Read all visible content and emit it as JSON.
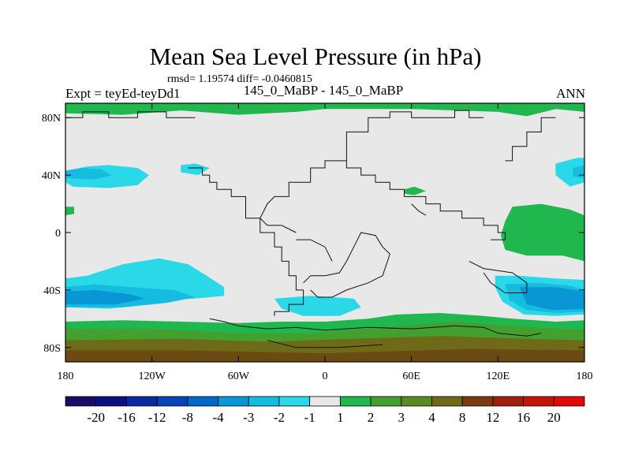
{
  "title": "Mean Sea Level Pressure (in hPa)",
  "stats": "rmsd= 1.19574 diff= -0.0460815",
  "left_label": "Expt = teyEd-teyDd1",
  "center_label": "145_0_MaBP - 145_0_MaBP",
  "right_label": "ANN",
  "lat_ticks": [
    {
      "label": "80N",
      "lat": 80
    },
    {
      "label": "40N",
      "lat": 40
    },
    {
      "label": "0",
      "lat": 0
    },
    {
      "label": "40S",
      "lat": -40
    },
    {
      "label": "80S",
      "lat": -80
    }
  ],
  "lon_ticks": [
    {
      "label": "180",
      "lon": -180
    },
    {
      "label": "120W",
      "lon": -120
    },
    {
      "label": "60W",
      "lon": -60
    },
    {
      "label": "0",
      "lon": 0
    },
    {
      "label": "60E",
      "lon": 60
    },
    {
      "label": "120E",
      "lon": 120
    },
    {
      "label": "180",
      "lon": 180
    }
  ],
  "colorbar": {
    "labels": [
      "-20",
      "-16",
      "-12",
      "-8",
      "-4",
      "-3",
      "-2",
      "-1",
      "1",
      "2",
      "3",
      "4",
      "8",
      "12",
      "16",
      "20"
    ],
    "colors": [
      "#1a0a66",
      "#0a107f",
      "#0a2aa3",
      "#0644b8",
      "#0468c8",
      "#0896d4",
      "#16bce0",
      "#2ad8e8",
      "#e8e8e8",
      "#20b84e",
      "#43a02e",
      "#5c8a22",
      "#6e6a18",
      "#7a3a12",
      "#a0200e",
      "#c4140a",
      "#e00a08"
    ]
  },
  "regions": [
    {
      "name": "arctic-positive-band",
      "color": "#20b84e",
      "rings": [
        [
          [
            -180,
            83
          ],
          [
            -140,
            82
          ],
          [
            -100,
            85
          ],
          [
            -60,
            82
          ],
          [
            -20,
            84
          ],
          [
            0,
            86
          ],
          [
            60,
            86
          ],
          [
            120,
            84
          ],
          [
            140,
            81
          ],
          [
            160,
            86
          ],
          [
            180,
            84
          ],
          [
            180,
            90
          ],
          [
            -180,
            90
          ]
        ]
      ]
    },
    {
      "name": "north-pacific-low-outer",
      "color": "#2ad8e8",
      "rings": [
        [
          [
            -180,
            43
          ],
          [
            -165,
            46
          ],
          [
            -150,
            47
          ],
          [
            -130,
            45
          ],
          [
            -122,
            40
          ],
          [
            -130,
            33
          ],
          [
            -150,
            31
          ],
          [
            -175,
            32
          ],
          [
            -180,
            35
          ]
        ]
      ]
    },
    {
      "name": "north-pacific-low-inner",
      "color": "#16bce0",
      "rings": [
        [
          [
            -180,
            43
          ],
          [
            -168,
            45
          ],
          [
            -155,
            44
          ],
          [
            -148,
            40
          ],
          [
            -160,
            37
          ],
          [
            -180,
            38
          ]
        ]
      ]
    },
    {
      "name": "north-atlantic-low",
      "color": "#2ad8e8",
      "rings": [
        [
          [
            -100,
            47
          ],
          [
            -90,
            48
          ],
          [
            -80,
            45
          ],
          [
            -88,
            40
          ],
          [
            -100,
            42
          ]
        ]
      ]
    },
    {
      "name": "east-north-low-outer",
      "color": "#2ad8e8",
      "rings": [
        [
          [
            160,
            48
          ],
          [
            175,
            52
          ],
          [
            180,
            52
          ],
          [
            180,
            35
          ],
          [
            170,
            32
          ],
          [
            160,
            40
          ]
        ]
      ]
    },
    {
      "name": "east-north-low-inner",
      "color": "#16bce0",
      "rings": [
        [
          [
            172,
            45
          ],
          [
            180,
            47
          ],
          [
            180,
            38
          ],
          [
            172,
            39
          ]
        ]
      ]
    },
    {
      "name": "east-pacific-high",
      "color": "#20b84e",
      "rings": [
        [
          [
            130,
            18
          ],
          [
            150,
            20
          ],
          [
            170,
            16
          ],
          [
            180,
            12
          ],
          [
            180,
            -20
          ],
          [
            165,
            -16
          ],
          [
            140,
            -16
          ],
          [
            125,
            -12
          ],
          [
            122,
            -2
          ],
          [
            125,
            8
          ]
        ]
      ]
    },
    {
      "name": "west-pacific-high-edge",
      "color": "#20b84e",
      "rings": [
        [
          [
            -180,
            18
          ],
          [
            -174,
            18
          ],
          [
            -174,
            13
          ],
          [
            -180,
            12
          ]
        ]
      ]
    },
    {
      "name": "tethys-high",
      "color": "#20b84e",
      "rings": [
        [
          [
            55,
            30
          ],
          [
            62,
            32
          ],
          [
            70,
            29
          ],
          [
            62,
            26
          ],
          [
            55,
            27
          ]
        ]
      ]
    },
    {
      "name": "southern-low-outer",
      "color": "#2ad8e8",
      "rings": [
        [
          [
            -180,
            -32
          ],
          [
            -165,
            -30
          ],
          [
            -140,
            -22
          ],
          [
            -115,
            -18
          ],
          [
            -95,
            -22
          ],
          [
            -82,
            -30
          ],
          [
            -70,
            -38
          ],
          [
            -70,
            -44
          ],
          [
            -90,
            -46
          ],
          [
            -110,
            -47
          ],
          [
            -130,
            -51
          ],
          [
            -150,
            -53
          ],
          [
            -180,
            -52
          ]
        ]
      ]
    },
    {
      "name": "southern-low-mid",
      "color": "#16bce0",
      "rings": [
        [
          [
            -180,
            -38
          ],
          [
            -160,
            -36
          ],
          [
            -135,
            -38
          ],
          [
            -105,
            -40
          ],
          [
            -90,
            -45
          ],
          [
            -110,
            -49
          ],
          [
            -140,
            -52
          ],
          [
            -180,
            -52
          ]
        ]
      ]
    },
    {
      "name": "southern-low-core",
      "color": "#0896d4",
      "rings": [
        [
          [
            -180,
            -41
          ],
          [
            -160,
            -40
          ],
          [
            -135,
            -43
          ],
          [
            -125,
            -46
          ],
          [
            -145,
            -50
          ],
          [
            -180,
            -50
          ]
        ]
      ]
    },
    {
      "name": "south-atlantic-low",
      "color": "#2ad8e8",
      "rings": [
        [
          [
            -35,
            -46
          ],
          [
            -10,
            -44
          ],
          [
            20,
            -46
          ],
          [
            25,
            -52
          ],
          [
            10,
            -58
          ],
          [
            -15,
            -58
          ],
          [
            -30,
            -53
          ]
        ]
      ]
    },
    {
      "name": "south-indian-low-outer",
      "color": "#2ad8e8",
      "rings": [
        [
          [
            118,
            -30
          ],
          [
            135,
            -30
          ],
          [
            160,
            -32
          ],
          [
            180,
            -33
          ],
          [
            180,
            -57
          ],
          [
            160,
            -58
          ],
          [
            138,
            -57
          ],
          [
            123,
            -48
          ],
          [
            118,
            -38
          ]
        ]
      ]
    },
    {
      "name": "south-indian-low-mid",
      "color": "#16bce0",
      "rings": [
        [
          [
            125,
            -36
          ],
          [
            145,
            -35
          ],
          [
            170,
            -37
          ],
          [
            180,
            -40
          ],
          [
            180,
            -55
          ],
          [
            160,
            -56
          ],
          [
            140,
            -54
          ],
          [
            128,
            -47
          ]
        ]
      ]
    },
    {
      "name": "south-indian-low-core",
      "color": "#0896d4",
      "rings": [
        [
          [
            135,
            -38
          ],
          [
            160,
            -38
          ],
          [
            180,
            -41
          ],
          [
            180,
            -53
          ],
          [
            158,
            -54
          ],
          [
            140,
            -50
          ]
        ]
      ]
    },
    {
      "name": "south-positive-green",
      "color": "#20b84e",
      "rings": [
        [
          [
            -180,
            -62
          ],
          [
            -140,
            -61
          ],
          [
            -100,
            -62
          ],
          [
            -60,
            -63
          ],
          [
            -30,
            -62
          ],
          [
            0,
            -62
          ],
          [
            30,
            -60
          ],
          [
            50,
            -57
          ],
          [
            80,
            -56
          ],
          [
            110,
            -58
          ],
          [
            130,
            -60
          ],
          [
            160,
            -62
          ],
          [
            180,
            -61
          ],
          [
            180,
            -90
          ],
          [
            -180,
            -90
          ]
        ]
      ]
    },
    {
      "name": "south-positive-olive",
      "color": "#43a02e",
      "rings": [
        [
          [
            -180,
            -67
          ],
          [
            -120,
            -67
          ],
          [
            -60,
            -70
          ],
          [
            -10,
            -70
          ],
          [
            40,
            -66
          ],
          [
            90,
            -62
          ],
          [
            130,
            -65
          ],
          [
            180,
            -68
          ],
          [
            180,
            -90
          ],
          [
            -180,
            -90
          ]
        ]
      ]
    },
    {
      "name": "south-positive-brown",
      "color": "#6e6a18",
      "rings": [
        [
          [
            -180,
            -75
          ],
          [
            -100,
            -74
          ],
          [
            -40,
            -76
          ],
          [
            20,
            -74
          ],
          [
            80,
            -72
          ],
          [
            140,
            -74
          ],
          [
            180,
            -75
          ],
          [
            180,
            -90
          ],
          [
            -180,
            -90
          ]
        ]
      ]
    },
    {
      "name": "south-positive-dark",
      "color": "#6b4a14",
      "rings": [
        [
          [
            -180,
            -82
          ],
          [
            -100,
            -82
          ],
          [
            0,
            -84
          ],
          [
            100,
            -81
          ],
          [
            180,
            -82
          ],
          [
            180,
            -90
          ],
          [
            -180,
            -90
          ]
        ]
      ]
    }
  ],
  "coastlines": [
    [
      [
        -180,
        80
      ],
      [
        -168,
        80
      ],
      [
        -168,
        84
      ],
      [
        -150,
        84
      ],
      [
        -150,
        80
      ],
      [
        -130,
        80
      ],
      [
        -130,
        84
      ],
      [
        -110,
        84
      ],
      [
        -110,
        80
      ],
      [
        -90,
        80
      ]
    ],
    [
      [
        -95,
        45
      ],
      [
        -85,
        45
      ],
      [
        -85,
        40
      ],
      [
        -80,
        40
      ],
      [
        -80,
        35
      ],
      [
        -75,
        35
      ],
      [
        -75,
        30
      ],
      [
        -65,
        30
      ],
      [
        -65,
        25
      ],
      [
        -55,
        25
      ],
      [
        -55,
        10
      ],
      [
        -45,
        10
      ],
      [
        -45,
        0
      ],
      [
        -35,
        0
      ],
      [
        -35,
        -10
      ],
      [
        -30,
        -10
      ],
      [
        -30,
        -20
      ],
      [
        -25,
        -20
      ],
      [
        -25,
        -30
      ],
      [
        -20,
        -30
      ],
      [
        -20,
        -40
      ],
      [
        -15,
        -40
      ],
      [
        -15,
        -50
      ],
      [
        -25,
        -50
      ],
      [
        -25,
        -55
      ],
      [
        -35,
        -55
      ],
      [
        -35,
        -58
      ]
    ],
    [
      [
        -45,
        10
      ],
      [
        -40,
        20
      ],
      [
        -35,
        25
      ],
      [
        -25,
        25
      ],
      [
        -25,
        35
      ],
      [
        -10,
        35
      ],
      [
        -10,
        45
      ],
      [
        0,
        45
      ],
      [
        0,
        50
      ],
      [
        15,
        50
      ],
      [
        15,
        45
      ],
      [
        25,
        45
      ],
      [
        25,
        40
      ],
      [
        35,
        40
      ],
      [
        35,
        35
      ],
      [
        45,
        35
      ],
      [
        45,
        30
      ],
      [
        55,
        30
      ],
      [
        55,
        25
      ],
      [
        70,
        25
      ],
      [
        70,
        20
      ],
      [
        80,
        20
      ],
      [
        80,
        15
      ],
      [
        95,
        15
      ],
      [
        95,
        10
      ],
      [
        110,
        10
      ],
      [
        110,
        5
      ],
      [
        120,
        5
      ],
      [
        120,
        0
      ],
      [
        125,
        0
      ],
      [
        125,
        -5
      ],
      [
        115,
        -5
      ]
    ],
    [
      [
        15,
        50
      ],
      [
        15,
        70
      ],
      [
        30,
        70
      ],
      [
        30,
        80
      ],
      [
        45,
        80
      ],
      [
        45,
        84
      ],
      [
        60,
        84
      ],
      [
        60,
        80
      ],
      [
        90,
        80
      ],
      [
        90,
        85
      ],
      [
        100,
        85
      ],
      [
        100,
        80
      ],
      [
        110,
        80
      ]
    ],
    [
      [
        125,
        50
      ],
      [
        130,
        50
      ],
      [
        130,
        60
      ],
      [
        140,
        60
      ],
      [
        140,
        70
      ],
      [
        150,
        70
      ],
      [
        150,
        80
      ],
      [
        160,
        80
      ]
    ],
    [
      [
        -15,
        -35
      ],
      [
        -10,
        -30
      ],
      [
        0,
        -30
      ],
      [
        10,
        -28
      ],
      [
        15,
        -20
      ],
      [
        20,
        -10
      ],
      [
        25,
        0
      ],
      [
        35,
        -2
      ],
      [
        40,
        -10
      ],
      [
        45,
        -15
      ],
      [
        40,
        -30
      ],
      [
        30,
        -35
      ],
      [
        15,
        -40
      ],
      [
        5,
        -45
      ],
      [
        -5,
        -45
      ],
      [
        -10,
        -40
      ]
    ],
    [
      [
        -80,
        -60
      ],
      [
        -70,
        -62
      ],
      [
        -60,
        -65
      ],
      [
        -40,
        -67
      ],
      [
        -20,
        -66
      ],
      [
        0,
        -68
      ],
      [
        30,
        -66
      ],
      [
        60,
        -67
      ],
      [
        90,
        -65
      ],
      [
        110,
        -66
      ],
      [
        120,
        -70
      ],
      [
        140,
        -72
      ],
      [
        150,
        -70
      ]
    ],
    [
      [
        -40,
        -75
      ],
      [
        -20,
        -80
      ],
      [
        10,
        -80
      ],
      [
        40,
        -78
      ]
    ],
    [
      [
        -20,
        0
      ],
      [
        -30,
        5
      ],
      [
        -40,
        5
      ],
      [
        -45,
        10
      ]
    ],
    [
      [
        60,
        20
      ],
      [
        65,
        15
      ],
      [
        70,
        12
      ]
    ],
    [
      [
        100,
        -20
      ],
      [
        110,
        -25
      ],
      [
        130,
        -28
      ],
      [
        140,
        -35
      ],
      [
        140,
        -42
      ],
      [
        125,
        -42
      ],
      [
        115,
        -35
      ],
      [
        110,
        -28
      ]
    ],
    [
      [
        -20,
        -5
      ],
      [
        -10,
        -5
      ],
      [
        0,
        -10
      ],
      [
        5,
        -20
      ]
    ]
  ]
}
